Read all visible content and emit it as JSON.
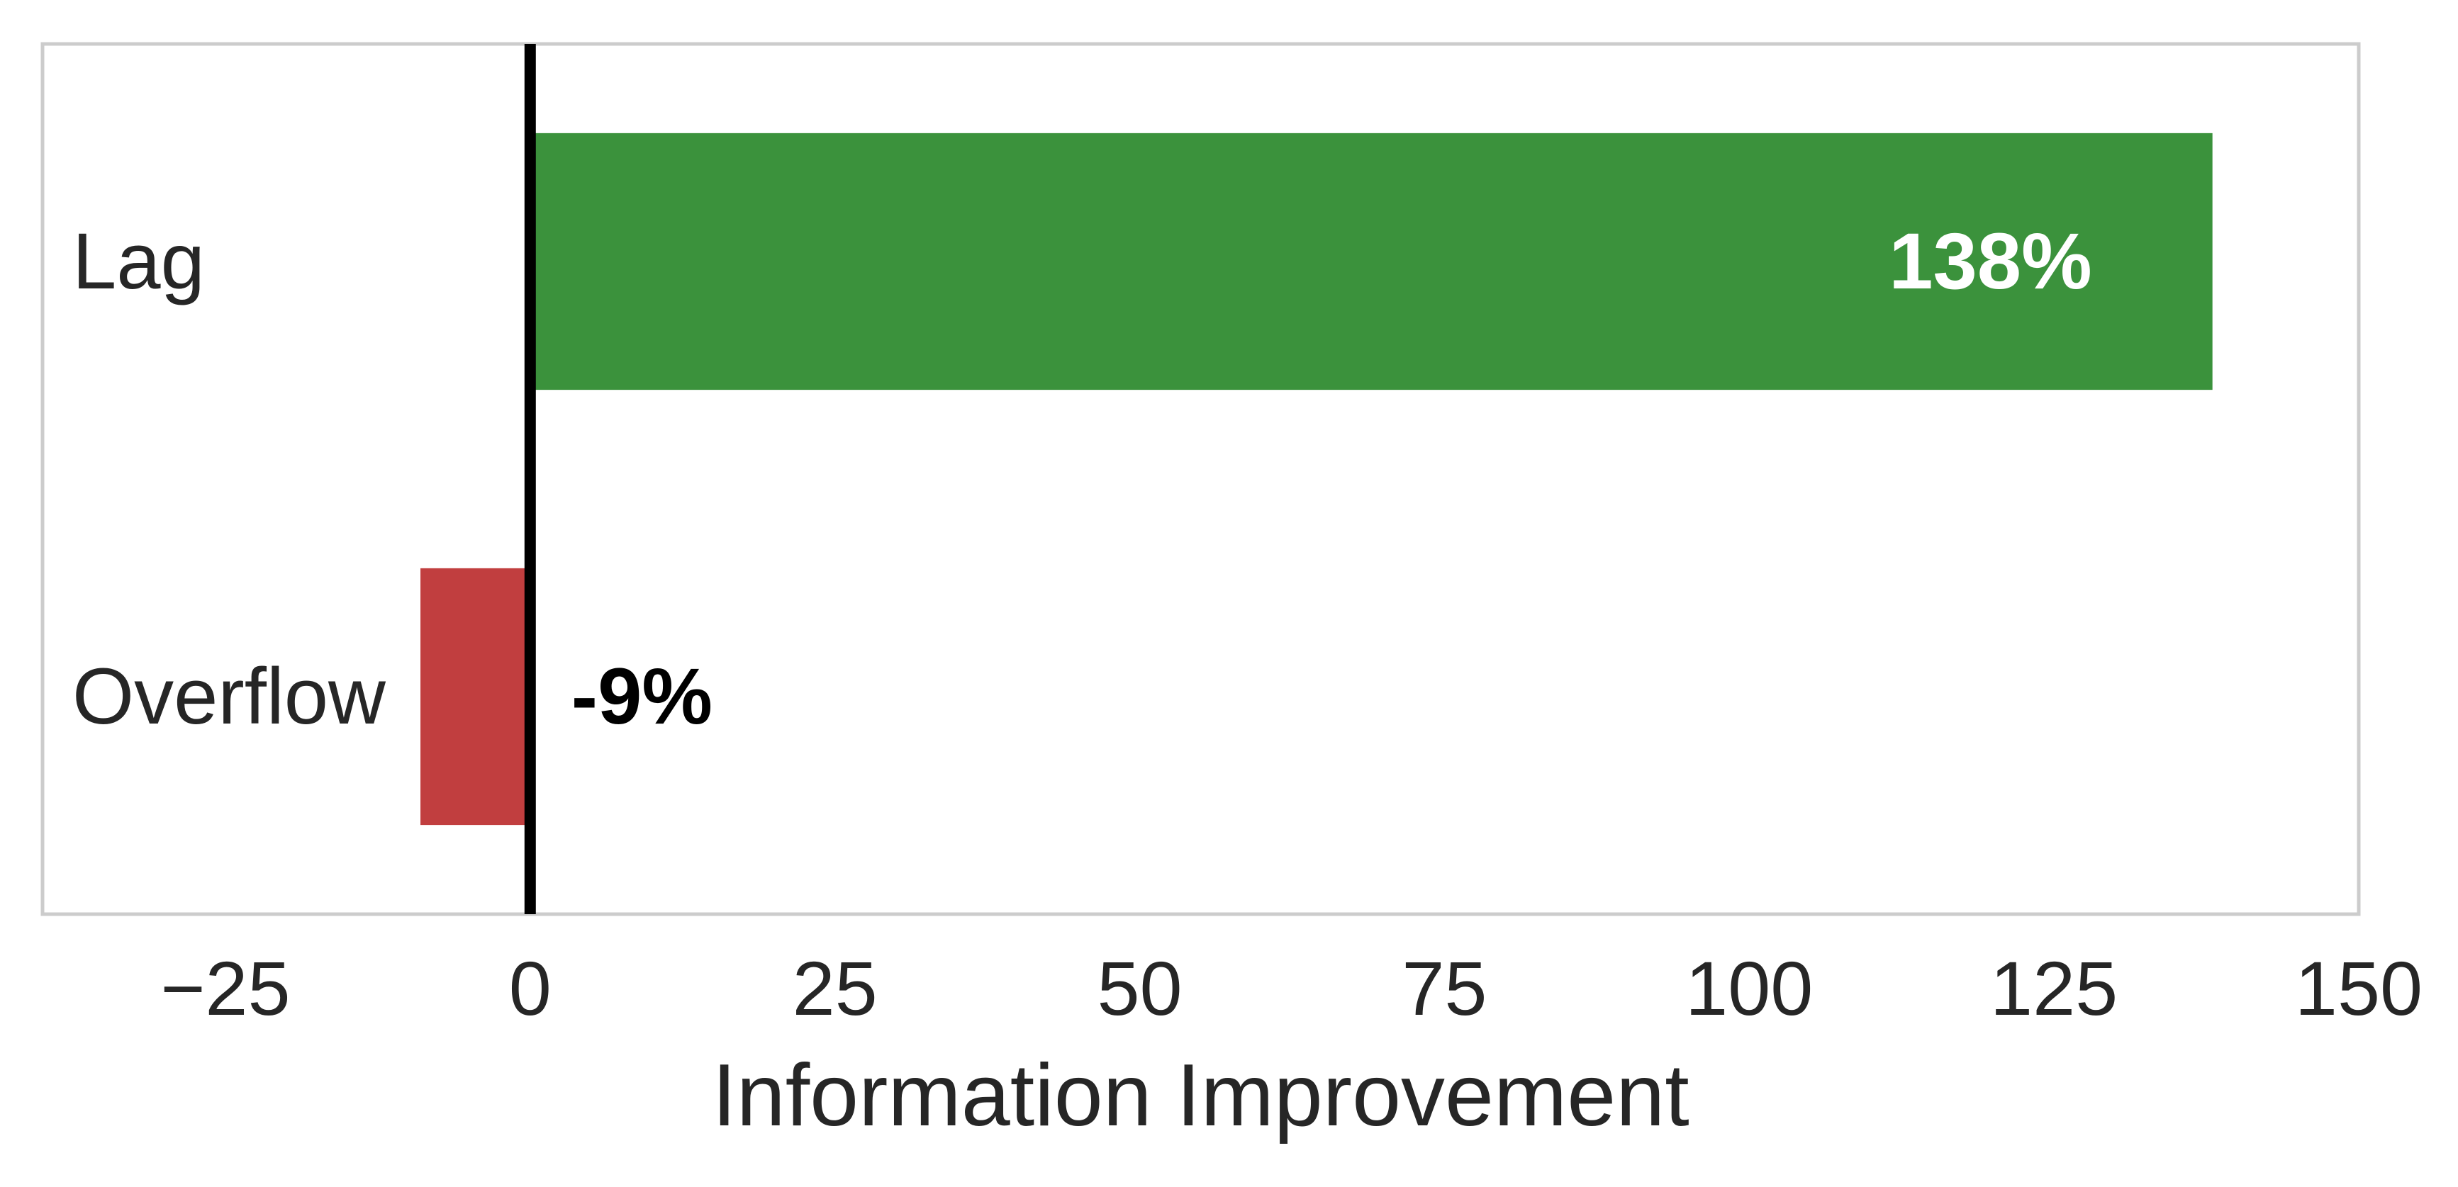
{
  "chart_data": {
    "type": "bar",
    "orientation": "horizontal",
    "categories": [
      "Lag",
      "Overflow"
    ],
    "values": [
      138,
      -9
    ],
    "data_labels": [
      "138%",
      "-9%"
    ],
    "bar_colors": [
      "#3b923c",
      "#c13e3f"
    ],
    "data_label_colors": [
      "#ffffff",
      "#000000"
    ],
    "xlabel": "Information Improvement",
    "ylabel": "",
    "title": "",
    "xlim": [
      -40,
      150
    ],
    "xticks": [
      -25,
      0,
      25,
      50,
      75,
      100,
      125,
      150
    ],
    "xtick_labels": [
      "−25",
      "0",
      "25",
      "50",
      "75",
      "100",
      "125",
      "150"
    ],
    "grid": false,
    "zero_line": {
      "value": 0,
      "color": "#000000"
    },
    "frame_color": "#cccccc",
    "text_color": "#262626"
  }
}
